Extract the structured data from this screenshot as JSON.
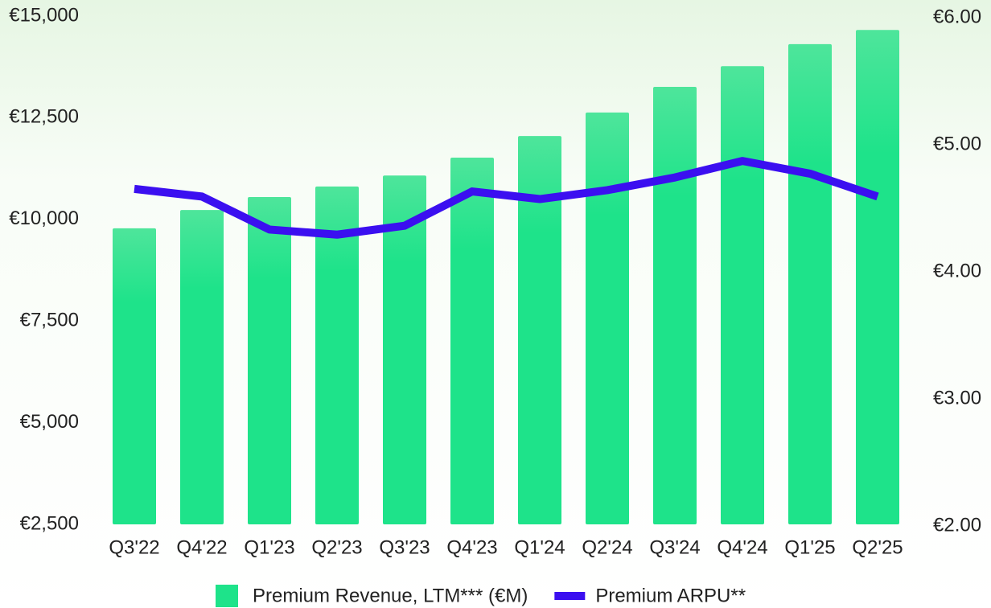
{
  "chart_data": {
    "type": "bar_line",
    "categories": [
      "Q3'22",
      "Q4'22",
      "Q1'23",
      "Q2'23",
      "Q3'23",
      "Q4'23",
      "Q1'24",
      "Q2'24",
      "Q3'24",
      "Q4'24",
      "Q1'25",
      "Q2'25"
    ],
    "series": [
      {
        "name": "Premium Revenue, LTM*** (€M)",
        "color": "#1ee38a",
        "type": "bar",
        "values": [
          9780,
          10230,
          10550,
          10810,
          11080,
          11520,
          12050,
          12630,
          13260,
          13770,
          14310,
          14660
        ]
      },
      {
        "name": "Premium ARPU**",
        "color": "#3b0ff0",
        "type": "line",
        "axis": "y2",
        "values": [
          4.64,
          4.58,
          4.32,
          4.28,
          4.35,
          4.62,
          4.56,
          4.63,
          4.73,
          4.86,
          4.76,
          4.58
        ]
      }
    ],
    "ylim": [
      2500,
      15000
    ],
    "yticks": [
      {
        "value": 2500,
        "label": "€2,500"
      },
      {
        "value": 5000,
        "label": "€5,000"
      },
      {
        "value": 7500,
        "label": "€7,500"
      },
      {
        "value": 10000,
        "label": "€10,000"
      },
      {
        "value": 12500,
        "label": "€12,500"
      },
      {
        "value": 15000,
        "label": "€15,000"
      }
    ],
    "y2lim": [
      2,
      6
    ],
    "y2ticks": [
      {
        "value": 2,
        "label": "€2.00"
      },
      {
        "value": 3,
        "label": "€3.00"
      },
      {
        "value": 4,
        "label": "€4.00"
      },
      {
        "value": 5,
        "label": "€5.00"
      },
      {
        "value": 6,
        "label": "€6.00"
      }
    ]
  }
}
